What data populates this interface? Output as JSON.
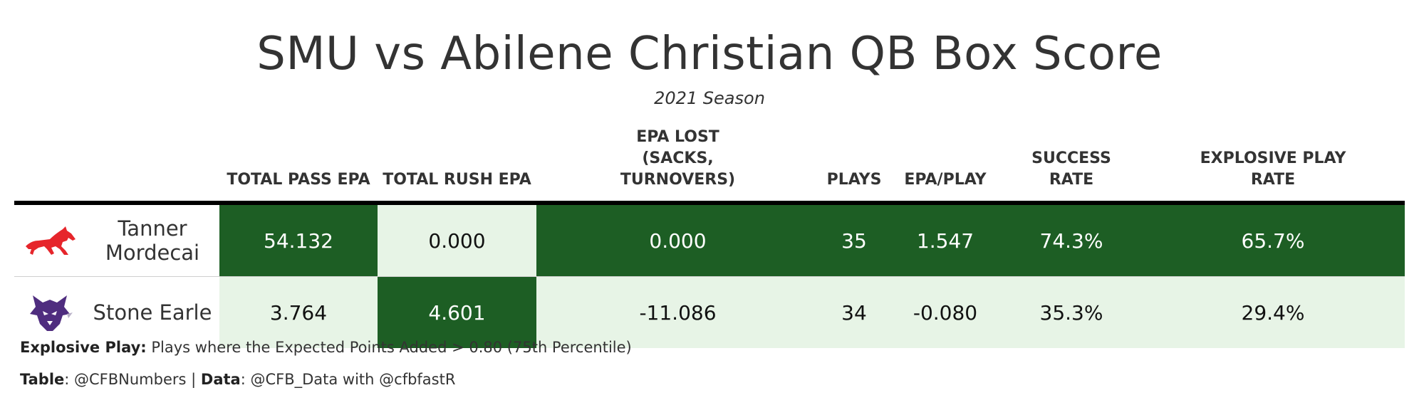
{
  "title": "SMU vs Abilene Christian QB Box Score",
  "subtitle": "2021 Season",
  "columns": {
    "pass_epa": "TOTAL PASS EPA",
    "rush_epa": "TOTAL RUSH EPA",
    "epa_lost": "EPA LOST (SACKS, TURNOVERS)",
    "plays": "PLAYS",
    "epa_play": "EPA/PLAY",
    "success": "SUCCESS RATE",
    "explosive": "EXPLOSIVE PLAY RATE"
  },
  "rows": [
    {
      "logo": "smu-mustang-logo",
      "player": "Tanner Mordecai",
      "pass_epa": "54.132",
      "rush_epa": "0.000",
      "epa_lost": "0.000",
      "plays": "35",
      "epa_play": "1.547",
      "success": "74.3%",
      "explosive": "65.7%"
    },
    {
      "logo": "abilene-christian-wildcat-logo",
      "player": "Stone Earle",
      "pass_epa": "3.764",
      "rush_epa": "4.601",
      "epa_lost": "-11.086",
      "plays": "34",
      "epa_play": "-0.080",
      "success": "35.3%",
      "explosive": "29.4%"
    }
  ],
  "notes": {
    "explosive_label": "Explosive Play:",
    "explosive_text": " Plays where the Expected Points Added > 0.80 (75th Percentile)",
    "table_label": "Table",
    "table_text": ": @CFBNumbers | ",
    "data_label": "Data",
    "data_text": ": @CFB_Data with @cfbfastR"
  },
  "colors": {
    "dark_green": "#1d5e24",
    "light_green": "#e7f4e6",
    "smu_red": "#e6252b",
    "acu_purple": "#4f2d7f"
  }
}
